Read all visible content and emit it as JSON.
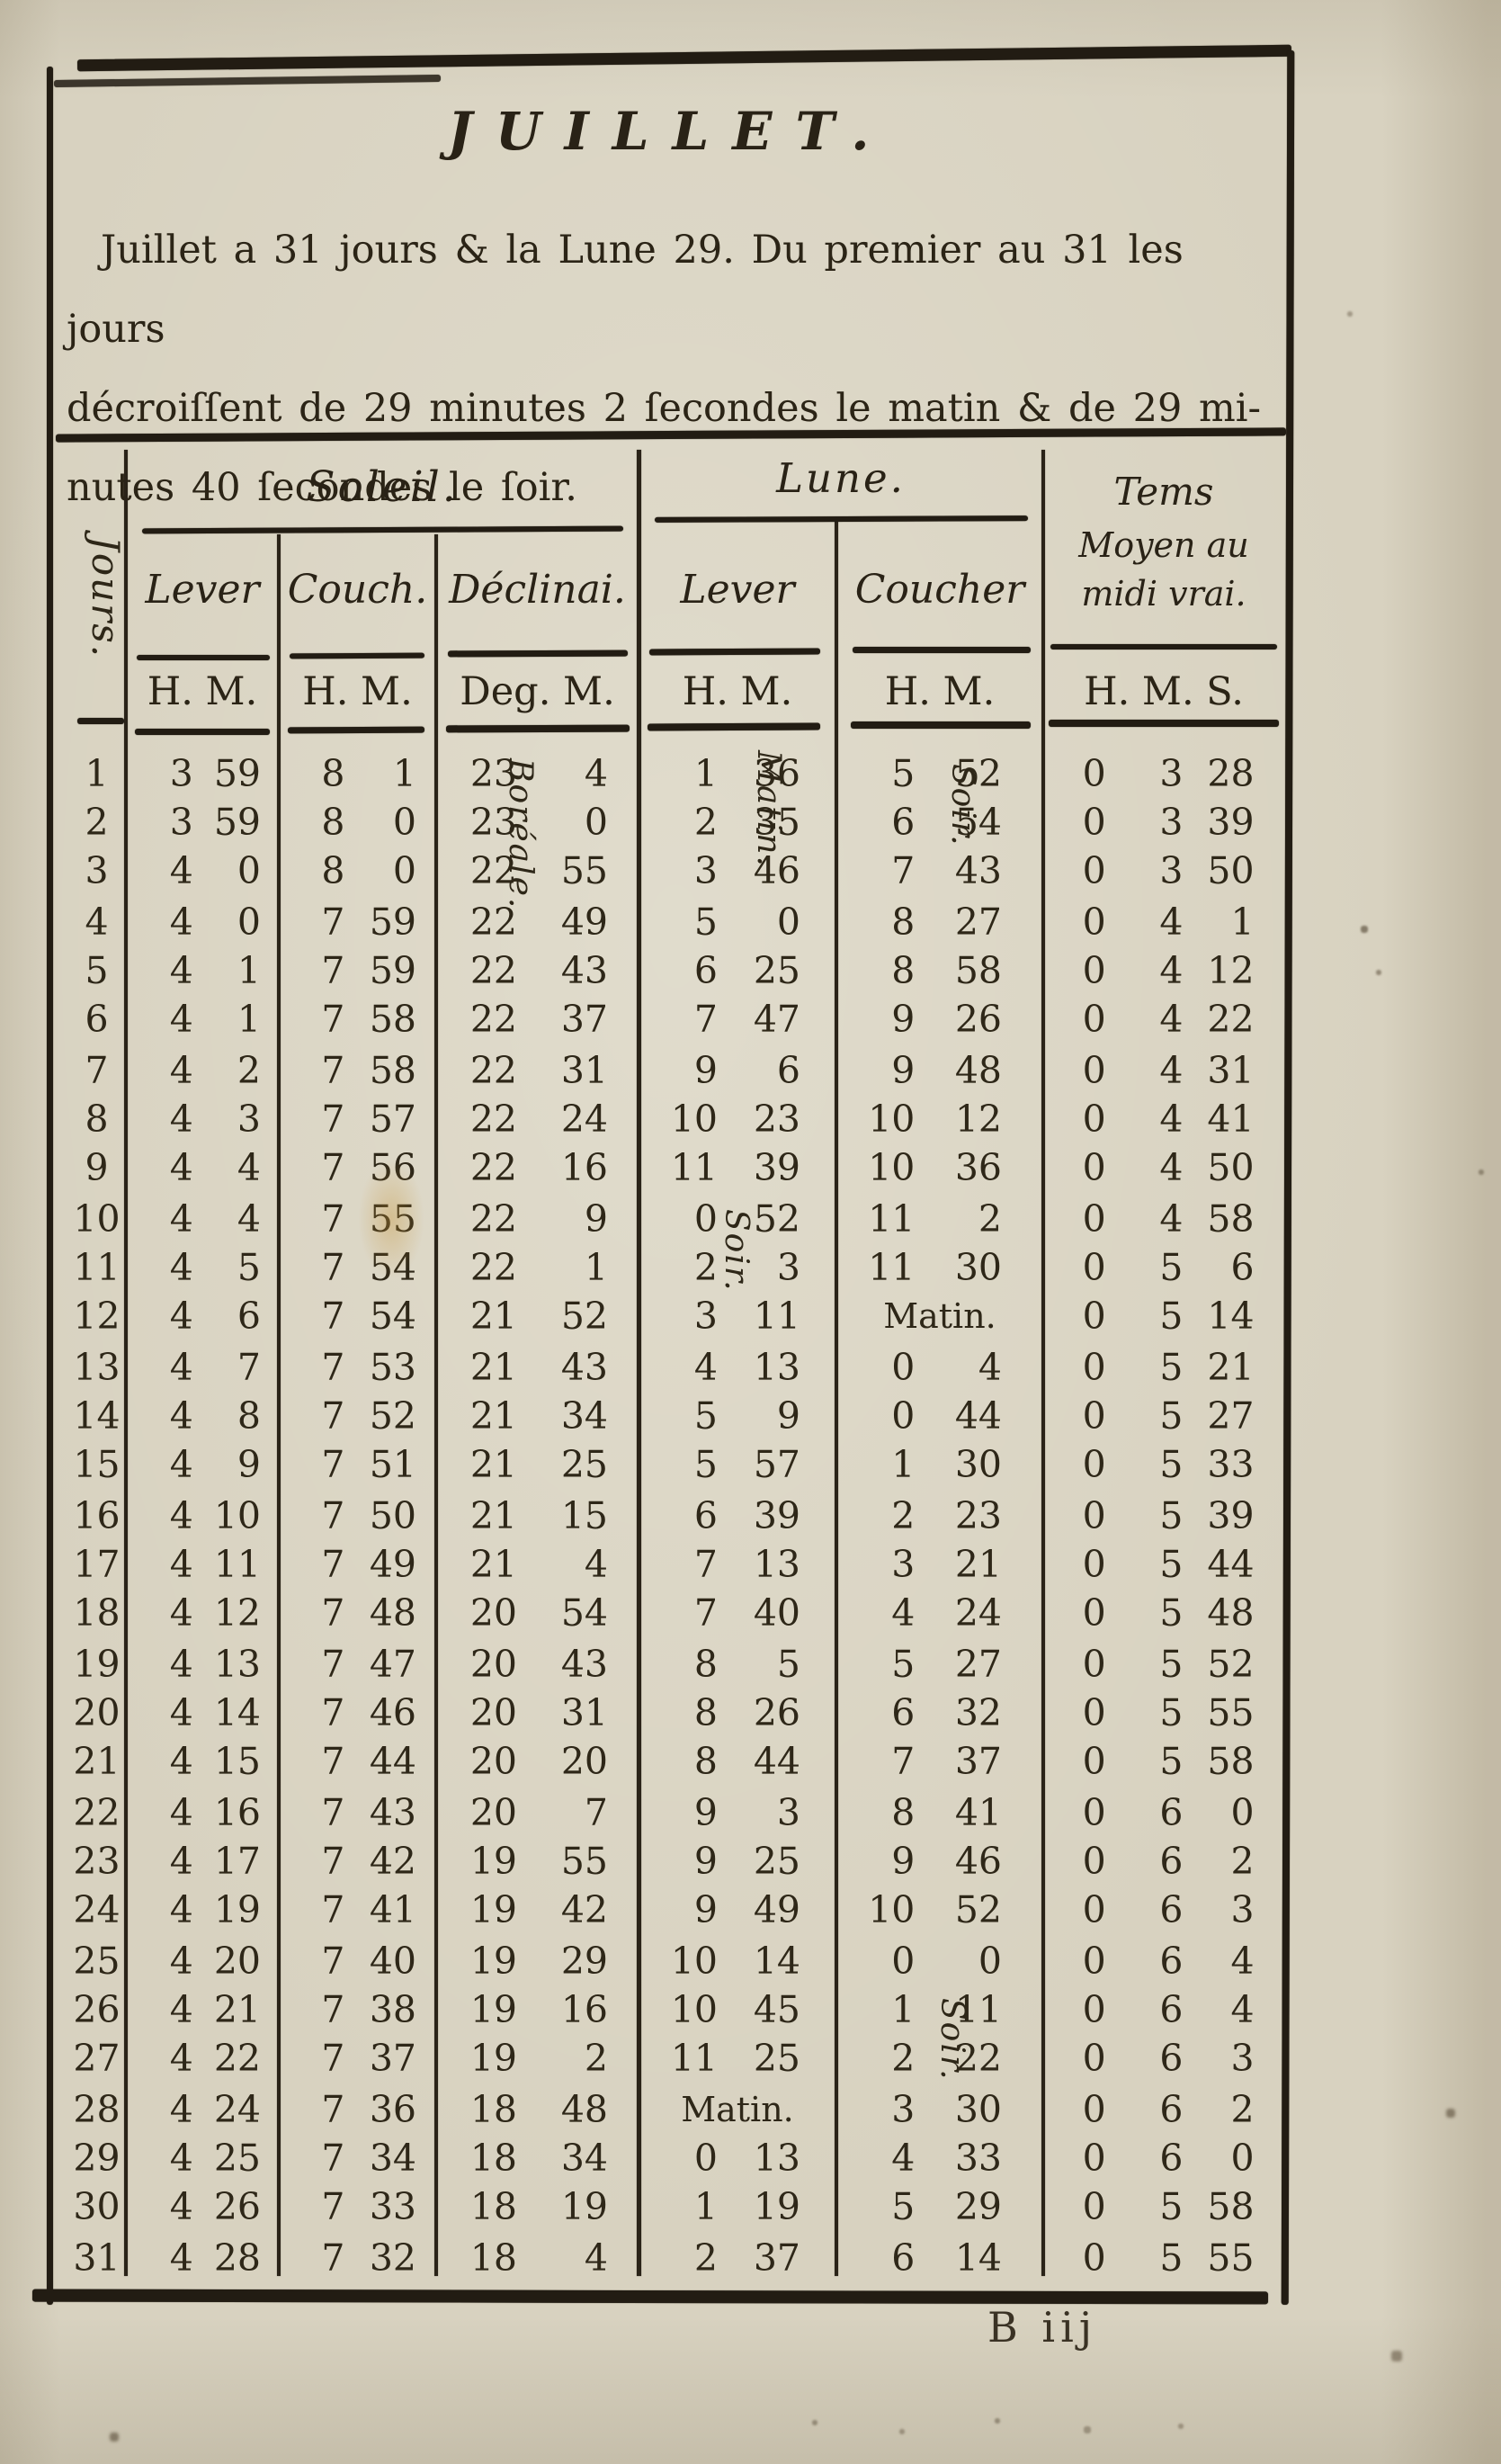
{
  "colors": {
    "paper": "#d8d2c0",
    "ink": "#2e2718",
    "rule": "#221c13"
  },
  "page": {
    "title": "JUILLET.",
    "intro_lines": [
      "Juillet a 31 jours & la Lune 29. Du premier au 31 les jours",
      "décroiſſent de 29 minutes 2 ſecondes le matin & de 29 mi-",
      "nutes 40 ſecondes le ſoir."
    ],
    "signature": "B iij"
  },
  "table": {
    "jours_label": "Jours.",
    "groups": {
      "soleil": "Soleil.",
      "lune": "Lune."
    },
    "tems_lines": [
      "Tems",
      "Moyen au",
      "midi vrai."
    ],
    "columns": [
      "Lever",
      "Couch.",
      "Déclinai.",
      "Lever",
      "Coucher"
    ],
    "units": [
      "H. M.",
      "H. M.",
      "Deg. M.",
      "H. M.",
      "H. M.",
      "H. M. S."
    ],
    "annotations": [
      "Boréale.",
      "Matin.",
      "Soir.",
      "Soir.",
      "Soir."
    ],
    "rows": [
      [
        1,
        "3",
        "59",
        "8",
        "1",
        "23",
        "4",
        "1",
        "36",
        "5",
        "52",
        "0",
        "3",
        "28"
      ],
      [
        2,
        "3",
        "59",
        "8",
        "0",
        "23",
        "0",
        "2",
        "35",
        "6",
        "54",
        "0",
        "3",
        "39"
      ],
      [
        3,
        "4",
        "0",
        "8",
        "0",
        "22",
        "55",
        "3",
        "46",
        "7",
        "43",
        "0",
        "3",
        "50"
      ],
      [
        4,
        "4",
        "0",
        "7",
        "59",
        "22",
        "49",
        "5",
        "0",
        "8",
        "27",
        "0",
        "4",
        "1"
      ],
      [
        5,
        "4",
        "1",
        "7",
        "59",
        "22",
        "43",
        "6",
        "25",
        "8",
        "58",
        "0",
        "4",
        "12"
      ],
      [
        6,
        "4",
        "1",
        "7",
        "58",
        "22",
        "37",
        "7",
        "47",
        "9",
        "26",
        "0",
        "4",
        "22"
      ],
      [
        7,
        "4",
        "2",
        "7",
        "58",
        "22",
        "31",
        "9",
        "6",
        "9",
        "48",
        "0",
        "4",
        "31"
      ],
      [
        8,
        "4",
        "3",
        "7",
        "57",
        "22",
        "24",
        "10",
        "23",
        "10",
        "12",
        "0",
        "4",
        "41"
      ],
      [
        9,
        "4",
        "4",
        "7",
        "56",
        "22",
        "16",
        "11",
        "39",
        "10",
        "36",
        "0",
        "4",
        "50"
      ],
      [
        10,
        "4",
        "4",
        "7",
        "55",
        "22",
        "9",
        "0",
        "52",
        "11",
        "2",
        "0",
        "4",
        "58"
      ],
      [
        11,
        "4",
        "5",
        "7",
        "54",
        "22",
        "1",
        "2",
        "3",
        "11",
        "30",
        "0",
        "5",
        "6"
      ],
      [
        12,
        "4",
        "6",
        "7",
        "54",
        "21",
        "52",
        "3",
        "11",
        "Matin.",
        null,
        "0",
        "5",
        "14"
      ],
      [
        13,
        "4",
        "7",
        "7",
        "53",
        "21",
        "43",
        "4",
        "13",
        "0",
        "4",
        "0",
        "5",
        "21"
      ],
      [
        14,
        "4",
        "8",
        "7",
        "52",
        "21",
        "34",
        "5",
        "9",
        "0",
        "44",
        "0",
        "5",
        "27"
      ],
      [
        15,
        "4",
        "9",
        "7",
        "51",
        "21",
        "25",
        "5",
        "57",
        "1",
        "30",
        "0",
        "5",
        "33"
      ],
      [
        16,
        "4",
        "10",
        "7",
        "50",
        "21",
        "15",
        "6",
        "39",
        "2",
        "23",
        "0",
        "5",
        "39"
      ],
      [
        17,
        "4",
        "11",
        "7",
        "49",
        "21",
        "4",
        "7",
        "13",
        "3",
        "21",
        "0",
        "5",
        "44"
      ],
      [
        18,
        "4",
        "12",
        "7",
        "48",
        "20",
        "54",
        "7",
        "40",
        "4",
        "24",
        "0",
        "5",
        "48"
      ],
      [
        19,
        "4",
        "13",
        "7",
        "47",
        "20",
        "43",
        "8",
        "5",
        "5",
        "27",
        "0",
        "5",
        "52"
      ],
      [
        20,
        "4",
        "14",
        "7",
        "46",
        "20",
        "31",
        "8",
        "26",
        "6",
        "32",
        "0",
        "5",
        "55"
      ],
      [
        21,
        "4",
        "15",
        "7",
        "44",
        "20",
        "20",
        "8",
        "44",
        "7",
        "37",
        "0",
        "5",
        "58"
      ],
      [
        22,
        "4",
        "16",
        "7",
        "43",
        "20",
        "7",
        "9",
        "3",
        "8",
        "41",
        "0",
        "6",
        "0"
      ],
      [
        23,
        "4",
        "17",
        "7",
        "42",
        "19",
        "55",
        "9",
        "25",
        "9",
        "46",
        "0",
        "6",
        "2"
      ],
      [
        24,
        "4",
        "19",
        "7",
        "41",
        "19",
        "42",
        "9",
        "49",
        "10",
        "52",
        "0",
        "6",
        "3"
      ],
      [
        25,
        "4",
        "20",
        "7",
        "40",
        "19",
        "29",
        "10",
        "14",
        "0",
        "0",
        "0",
        "6",
        "4"
      ],
      [
        26,
        "4",
        "21",
        "7",
        "38",
        "19",
        "16",
        "10",
        "45",
        "1",
        "11",
        "0",
        "6",
        "4"
      ],
      [
        27,
        "4",
        "22",
        "7",
        "37",
        "19",
        "2",
        "11",
        "25",
        "2",
        "22",
        "0",
        "6",
        "3"
      ],
      [
        28,
        "4",
        "24",
        "7",
        "36",
        "18",
        "48",
        "Matin.",
        null,
        "3",
        "30",
        "0",
        "6",
        "2"
      ],
      [
        29,
        "4",
        "25",
        "7",
        "34",
        "18",
        "34",
        "0",
        "13",
        "4",
        "33",
        "0",
        "6",
        "0"
      ],
      [
        30,
        "4",
        "26",
        "7",
        "33",
        "18",
        "19",
        "1",
        "19",
        "5",
        "29",
        "0",
        "5",
        "58"
      ],
      [
        31,
        "4",
        "28",
        "7",
        "32",
        "18",
        "4",
        "2",
        "37",
        "6",
        "14",
        "0",
        "5",
        "55"
      ]
    ]
  }
}
